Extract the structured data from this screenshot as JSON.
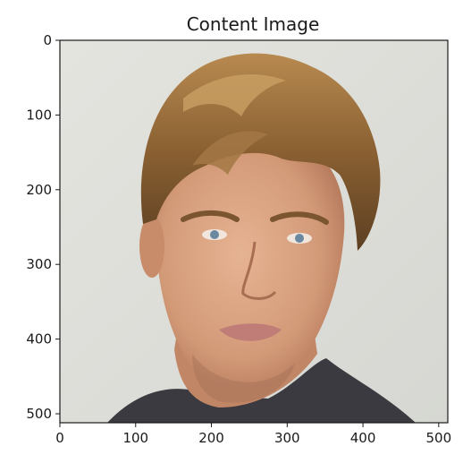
{
  "chart_data": {
    "type": "image",
    "title": "Content Image",
    "subject": "portrait photograph of a man with tousled blonde hair, light background",
    "xlim": [
      0,
      512
    ],
    "ylim": [
      512,
      0
    ],
    "xticks": [
      0,
      100,
      200,
      300,
      400,
      500
    ],
    "yticks": [
      0,
      100,
      200,
      300,
      400,
      500
    ],
    "xlabel": "",
    "ylabel": "",
    "grid": false,
    "legend": "none"
  },
  "colors": {
    "background": "#dfe0db",
    "skin": "#d8a282",
    "skin_shadow": "#b57a5c",
    "hair": "#8a6032",
    "hair_highlight": "#c9a064",
    "shirt": "#3a3a40",
    "lips": "#c07d78",
    "eyes": "#6a88a0"
  }
}
